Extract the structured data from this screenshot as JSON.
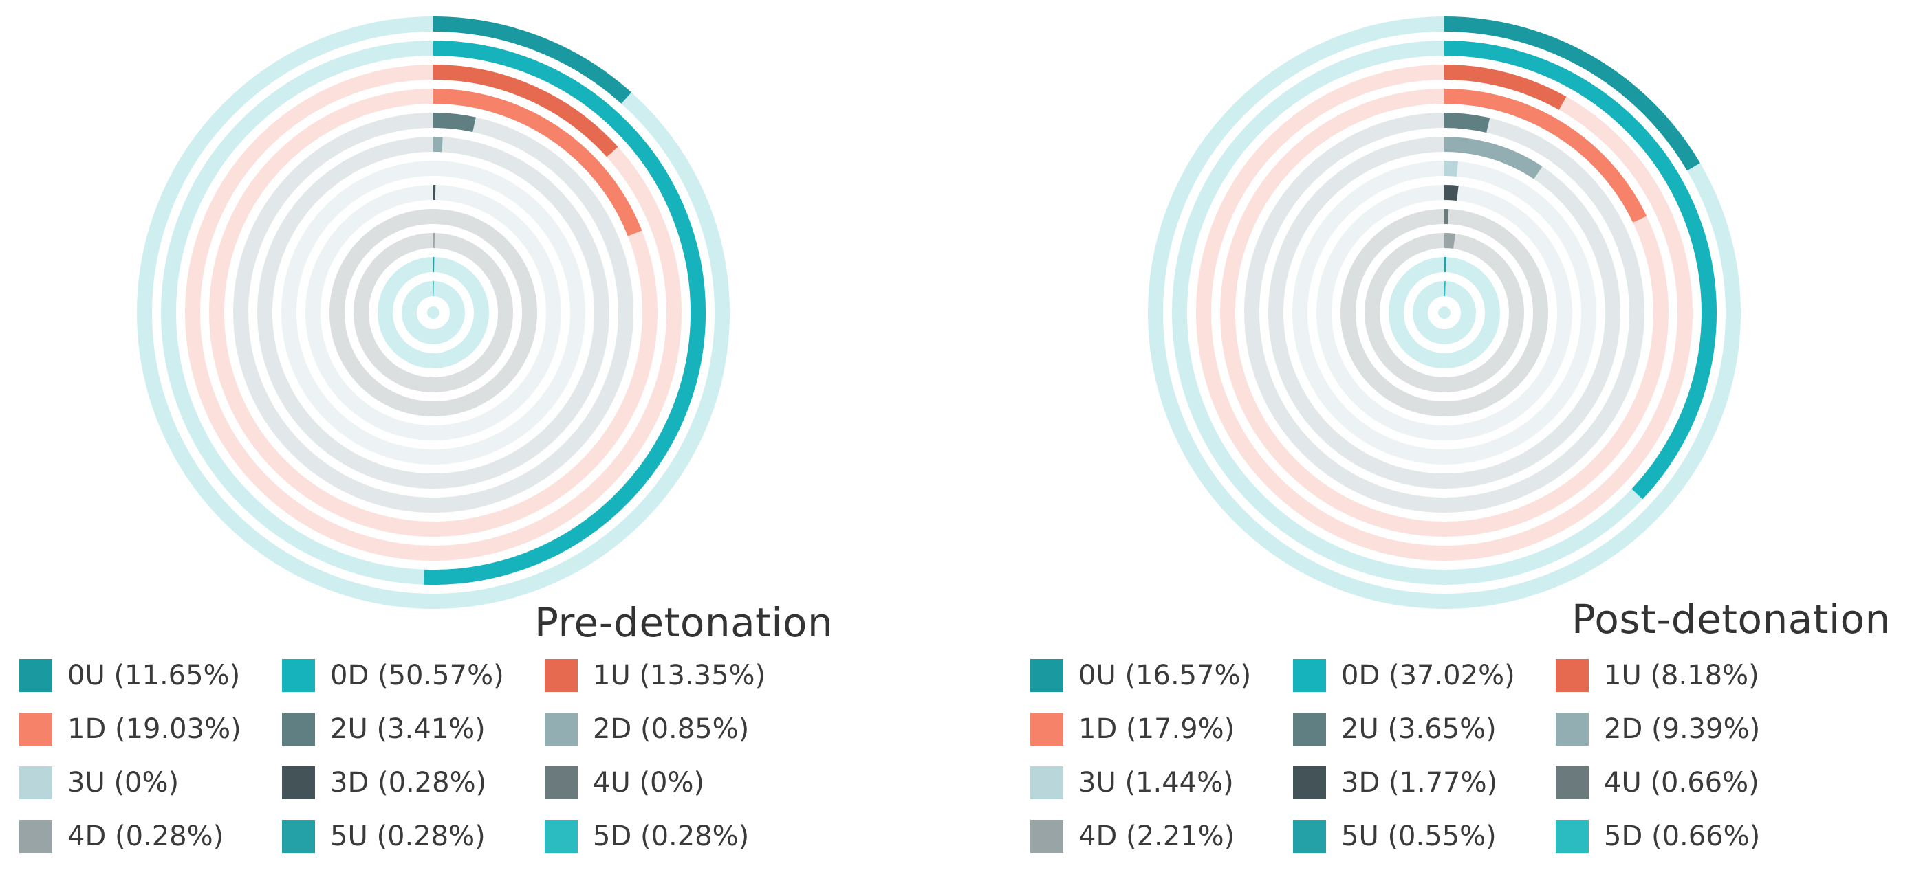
{
  "chart_data": [
    {
      "type": "radial-bar",
      "title": "Pre-detonation",
      "series": [
        {
          "name": "0U",
          "label": "0U (11.65%)",
          "value": 11.65,
          "color": "#1a9aa0",
          "track": "#cfeef0"
        },
        {
          "name": "0D",
          "label": "0D (50.57%)",
          "value": 50.57,
          "color": "#17b3bc",
          "track": "#cfeef0"
        },
        {
          "name": "1U",
          "label": "1U (13.35%)",
          "value": 13.35,
          "color": "#e56a50",
          "track": "#fbe0db"
        },
        {
          "name": "1D",
          "label": "1D (19.03%)",
          "value": 19.03,
          "color": "#f6826a",
          "track": "#fbe0db"
        },
        {
          "name": "2U",
          "label": "2U (3.41%)",
          "value": 3.41,
          "color": "#5f7f83",
          "track": "#e2e8e9"
        },
        {
          "name": "2D",
          "label": "2D (0.85%)",
          "value": 0.85,
          "color": "#93aeb2",
          "track": "#e2e8e9"
        },
        {
          "name": "3U",
          "label": "3U (0%)",
          "value": 0,
          "color": "#b9d6db",
          "track": "#edf3f4"
        },
        {
          "name": "3D",
          "label": "3D (0.28%)",
          "value": 0.28,
          "color": "#435358",
          "track": "#edf3f4"
        },
        {
          "name": "4U",
          "label": "4U (0%)",
          "value": 0,
          "color": "#6b7b7d",
          "track": "#dcdfe0"
        },
        {
          "name": "4D",
          "label": "4D (0.28%)",
          "value": 0.28,
          "color": "#98a4a6",
          "track": "#dcdfe0"
        },
        {
          "name": "5U",
          "label": "5U (0.28%)",
          "value": 0.28,
          "color": "#23a1a6",
          "track": "#cfeef0"
        },
        {
          "name": "5D",
          "label": "5D (0.28%)",
          "value": 0.28,
          "color": "#2bbcc2",
          "track": "#cfeef0"
        }
      ]
    },
    {
      "type": "radial-bar",
      "title": "Post-detonation",
      "series": [
        {
          "name": "0U",
          "label": "0U (16.57%)",
          "value": 16.57,
          "color": "#1a9aa0",
          "track": "#cfeef0"
        },
        {
          "name": "0D",
          "label": "0D (37.02%)",
          "value": 37.02,
          "color": "#17b3bc",
          "track": "#cfeef0"
        },
        {
          "name": "1U",
          "label": "1U (8.18%)",
          "value": 8.18,
          "color": "#e56a50",
          "track": "#fbe0db"
        },
        {
          "name": "1D",
          "label": "1D (17.9%)",
          "value": 17.9,
          "color": "#f6826a",
          "track": "#fbe0db"
        },
        {
          "name": "2U",
          "label": "2U (3.65%)",
          "value": 3.65,
          "color": "#5f7f83",
          "track": "#e2e8e9"
        },
        {
          "name": "2D",
          "label": "2D (9.39%)",
          "value": 9.39,
          "color": "#93aeb2",
          "track": "#e2e8e9"
        },
        {
          "name": "3U",
          "label": "3U (1.44%)",
          "value": 1.44,
          "color": "#b9d6db",
          "track": "#edf3f4"
        },
        {
          "name": "3D",
          "label": "3D (1.77%)",
          "value": 1.77,
          "color": "#435358",
          "track": "#edf3f4"
        },
        {
          "name": "4U",
          "label": "4U (0.66%)",
          "value": 0.66,
          "color": "#6b7b7d",
          "track": "#dcdfe0"
        },
        {
          "name": "4D",
          "label": "4D (2.21%)",
          "value": 2.21,
          "color": "#98a4a6",
          "track": "#dcdfe0"
        },
        {
          "name": "5U",
          "label": "5U (0.55%)",
          "value": 0.55,
          "color": "#23a1a6",
          "track": "#cfeef0"
        },
        {
          "name": "5D",
          "label": "5D (0.66%)",
          "value": 0.66,
          "color": "#2bbcc2",
          "track": "#cfeef0"
        }
      ]
    }
  ]
}
